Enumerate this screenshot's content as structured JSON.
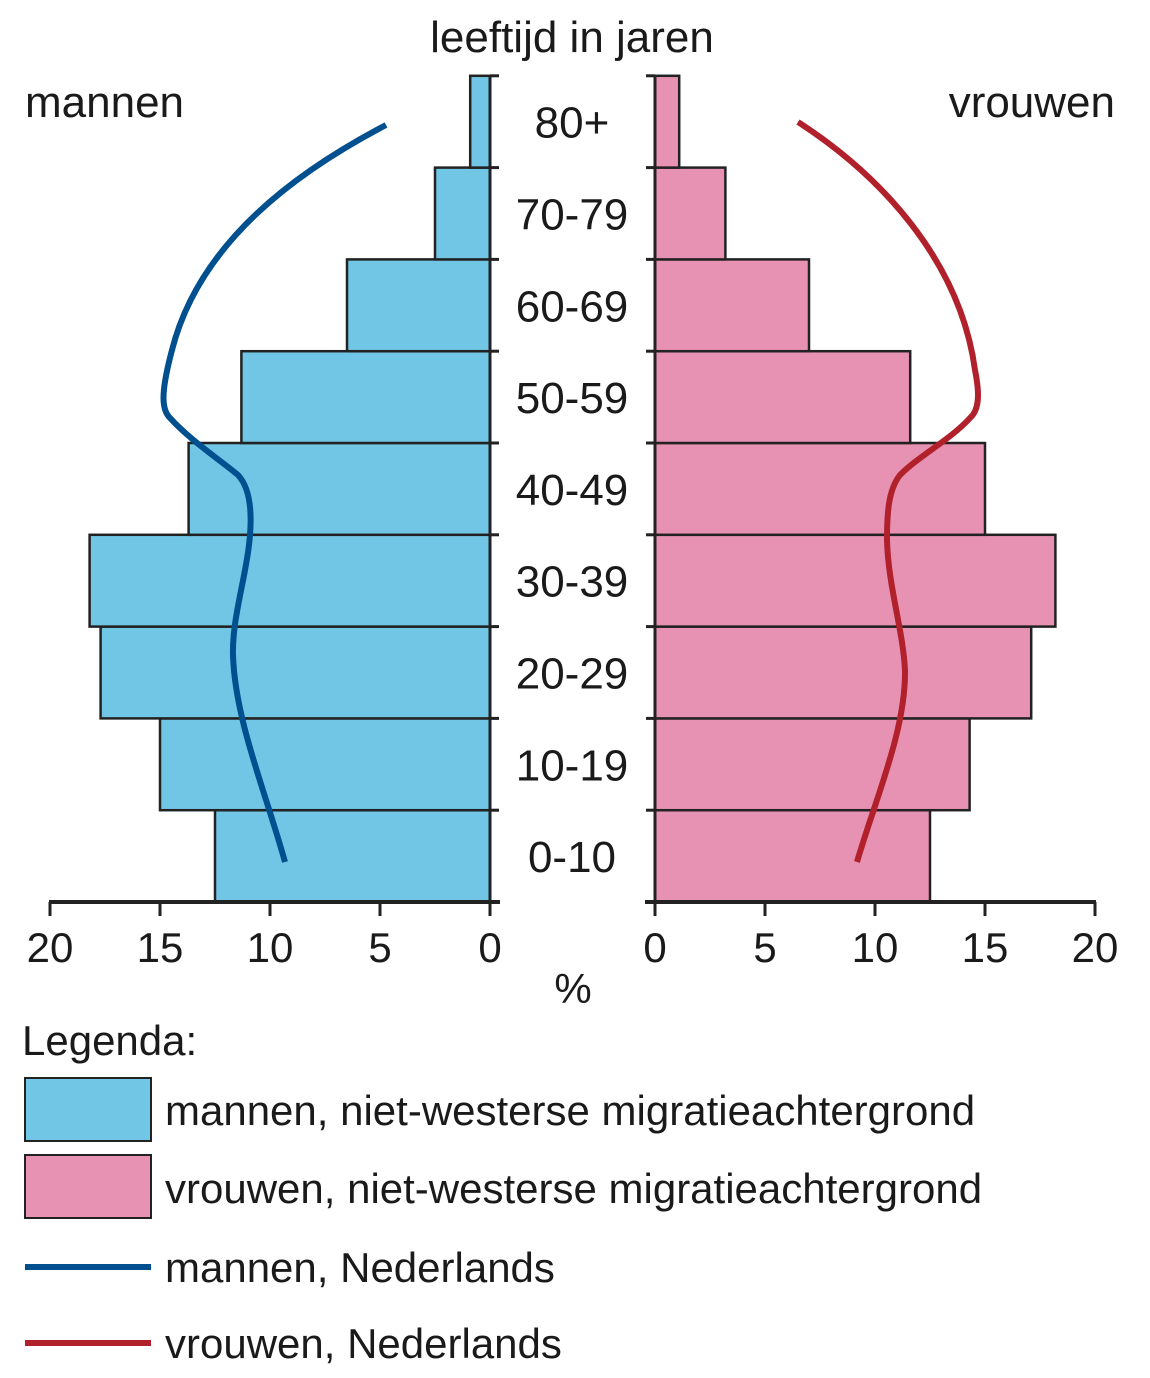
{
  "chart_data": {
    "type": "bar",
    "subtype": "population-pyramid",
    "title": "leeftijd in jaren",
    "xlabel": "%",
    "ylabel": "leeftijd in jaren",
    "left_side_label": "mannen",
    "right_side_label": "vrouwen",
    "xlim": [
      0,
      20
    ],
    "x_ticks": [
      0,
      5,
      10,
      15,
      20
    ],
    "x_tick_labels": [
      "0",
      "5",
      "10",
      "15",
      "20"
    ],
    "categories": [
      "0-10",
      "10-19",
      "20-29",
      "30-39",
      "40-49",
      "50-59",
      "60-69",
      "70-79",
      "80+"
    ],
    "series": [
      {
        "name": "mannen, niet-westerse migratieachtergrond",
        "kind": "bar",
        "side": "left",
        "color": "#71C6E5",
        "values": [
          12.5,
          15.0,
          17.7,
          18.2,
          13.7,
          11.3,
          6.5,
          2.5,
          0.9
        ]
      },
      {
        "name": "vrouwen, niet-westerse migratieachtergrond",
        "kind": "bar",
        "side": "right",
        "color": "#E892B3",
        "values": [
          12.5,
          14.3,
          17.1,
          18.2,
          15.0,
          11.6,
          7.0,
          3.2,
          1.1
        ]
      },
      {
        "name": "mannen, Nederlands",
        "kind": "line",
        "side": "left",
        "color": "#00508F",
        "values": [
          9.4,
          10.4,
          11.5,
          10.9,
          11.0,
          14.9,
          13.5,
          9.0,
          4.8
        ]
      },
      {
        "name": "vrouwen, Nederlands",
        "kind": "line",
        "side": "right",
        "color": "#B1212B",
        "values": [
          9.3,
          10.5,
          11.3,
          10.7,
          11.0,
          14.7,
          13.3,
          9.5,
          6.5
        ]
      }
    ],
    "grid": false,
    "legend_position": "bottom-left"
  },
  "legend": {
    "title": "Legenda:",
    "items": [
      {
        "label": "mannen, niet-westerse migratieachtergrond",
        "type": "box",
        "color": "#71C6E5"
      },
      {
        "label": "vrouwen, niet-westerse migratieachtergrond",
        "type": "box",
        "color": "#E892B3"
      },
      {
        "label": "mannen, Nederlands",
        "type": "line",
        "color": "#00508F"
      },
      {
        "label": "vrouwen, Nederlands",
        "type": "line",
        "color": "#B1212B"
      }
    ]
  }
}
